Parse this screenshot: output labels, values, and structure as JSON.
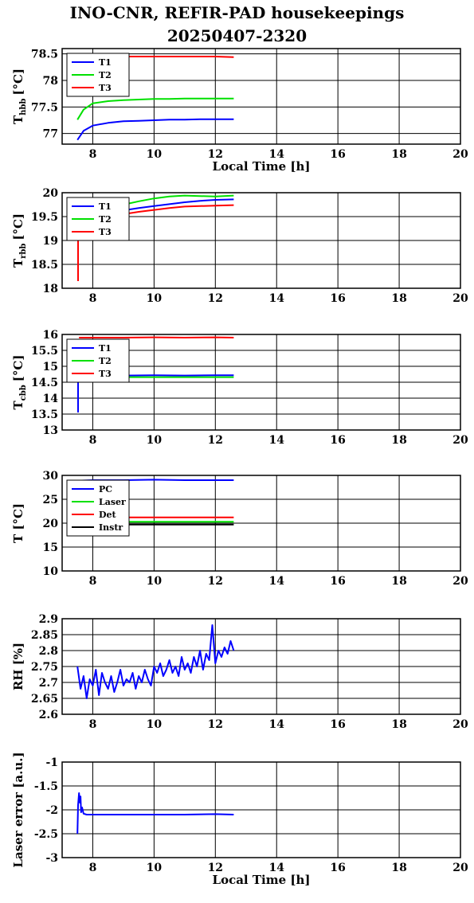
{
  "title": "INO-CNR, REFIR-PAD housekeepings",
  "subtitle": "20250407-2320",
  "colors": {
    "blue": "#0000ff",
    "green": "#00e000",
    "red": "#ff0000",
    "black": "#000000"
  },
  "chart_data": [
    {
      "type": "line",
      "ylabel": "T",
      "ylabel_sub": "hbb",
      "ylabel_unit": "[°C]",
      "xlabel": "Local Time [h]",
      "xlim": [
        7,
        20
      ],
      "ylim": [
        76.8,
        78.6
      ],
      "xticks": [
        "8",
        "10",
        "12",
        "14",
        "16",
        "18",
        "20"
      ],
      "yticks": [
        "77",
        "77.5",
        "78",
        "78.5"
      ],
      "ytick_values": [
        77,
        77.5,
        78,
        78.5
      ],
      "grid": true,
      "legend_position": "top-left",
      "series": [
        {
          "name": "T1",
          "color": "#0000ff",
          "x": [
            7.5,
            7.7,
            8.0,
            8.5,
            9.0,
            9.5,
            10.0,
            10.5,
            11.0,
            11.5,
            12.0,
            12.6
          ],
          "y": [
            76.88,
            77.05,
            77.15,
            77.2,
            77.23,
            77.24,
            77.25,
            77.26,
            77.26,
            77.27,
            77.27,
            77.27
          ]
        },
        {
          "name": "T2",
          "color": "#00e000",
          "x": [
            7.5,
            7.7,
            8.0,
            8.5,
            9.0,
            9.5,
            10.0,
            10.5,
            11.0,
            11.5,
            12.0,
            12.6
          ],
          "y": [
            77.26,
            77.45,
            77.57,
            77.61,
            77.63,
            77.64,
            77.65,
            77.65,
            77.66,
            77.66,
            77.66,
            77.66
          ]
        },
        {
          "name": "T3",
          "color": "#ff0000",
          "x": [
            7.5,
            8.0,
            9.0,
            10.0,
            11.0,
            12.0,
            12.6
          ],
          "y": [
            78.46,
            78.45,
            78.45,
            78.45,
            78.45,
            78.45,
            78.44
          ]
        }
      ]
    },
    {
      "type": "line",
      "ylabel": "T",
      "ylabel_sub": "rbb",
      "ylabel_unit": "[°C]",
      "xlim": [
        7,
        20
      ],
      "ylim": [
        18,
        20
      ],
      "xticks": [
        "8",
        "10",
        "12",
        "14",
        "16",
        "18",
        "20"
      ],
      "yticks": [
        "18",
        "18.5",
        "19",
        "19.5",
        "20"
      ],
      "ytick_values": [
        18,
        18.5,
        19,
        19.5,
        20
      ],
      "grid": true,
      "legend_position": "top-left",
      "series": [
        {
          "name": "T1",
          "color": "#0000ff",
          "x": [
            7.55,
            8.0,
            8.5,
            9.0,
            9.5,
            10.0,
            10.5,
            11.0,
            11.5,
            12.0,
            12.6
          ],
          "y": [
            19.45,
            19.52,
            19.58,
            19.63,
            19.68,
            19.72,
            19.76,
            19.8,
            19.83,
            19.85,
            19.86
          ]
        },
        {
          "name": "T2",
          "color": "#00e000",
          "x": [
            7.55,
            8.0,
            8.5,
            9.0,
            9.5,
            10.0,
            10.5,
            11.0,
            11.5,
            12.0,
            12.6
          ],
          "y": [
            19.5,
            19.58,
            19.68,
            19.75,
            19.82,
            19.88,
            19.92,
            19.94,
            19.93,
            19.92,
            19.94
          ]
        },
        {
          "name": "T3",
          "color": "#ff0000",
          "x": [
            7.52,
            7.52,
            7.55,
            8.0,
            8.5,
            9.0,
            9.5,
            10.0,
            10.5,
            11.0,
            11.5,
            12.0,
            12.6
          ],
          "y": [
            18.15,
            19.05,
            19.38,
            19.45,
            19.5,
            19.55,
            19.6,
            19.64,
            19.68,
            19.71,
            19.72,
            19.73,
            19.74
          ]
        }
      ]
    },
    {
      "type": "line",
      "ylabel": "T",
      "ylabel_sub": "cbb",
      "ylabel_unit": "[°C]",
      "xlim": [
        7,
        20
      ],
      "ylim": [
        13,
        16
      ],
      "xticks": [
        "8",
        "10",
        "12",
        "14",
        "16",
        "18",
        "20"
      ],
      "yticks": [
        "13",
        "13.5",
        "14",
        "14.5",
        "15",
        "15.5",
        "16"
      ],
      "ytick_values": [
        13,
        13.5,
        14,
        14.5,
        15,
        15.5,
        16
      ],
      "grid": true,
      "legend_position": "top-left",
      "series": [
        {
          "name": "T1",
          "color": "#0000ff",
          "x": [
            7.52,
            7.52,
            7.55,
            8.0,
            9.0,
            10.0,
            11.0,
            12.0,
            12.6
          ],
          "y": [
            13.55,
            14.6,
            14.7,
            14.72,
            14.71,
            14.72,
            14.71,
            14.72,
            14.72
          ]
        },
        {
          "name": "T2",
          "color": "#00e000",
          "x": [
            7.55,
            8.0,
            9.0,
            10.0,
            11.0,
            12.0,
            12.6
          ],
          "y": [
            14.65,
            14.66,
            14.66,
            14.66,
            14.66,
            14.66,
            14.66
          ]
        },
        {
          "name": "T3",
          "color": "#ff0000",
          "x": [
            7.55,
            8.0,
            9.0,
            10.0,
            11.0,
            12.0,
            12.6
          ],
          "y": [
            15.9,
            15.9,
            15.9,
            15.91,
            15.9,
            15.91,
            15.9
          ]
        }
      ]
    },
    {
      "type": "line",
      "ylabel": "T [°C]",
      "xlim": [
        7,
        20
      ],
      "ylim": [
        10,
        30
      ],
      "xticks": [
        "8",
        "10",
        "12",
        "14",
        "16",
        "18",
        "20"
      ],
      "yticks": [
        "10",
        "15",
        "20",
        "25",
        "30"
      ],
      "ytick_values": [
        10,
        15,
        20,
        25,
        30
      ],
      "grid": true,
      "legend_position": "top-left",
      "series": [
        {
          "name": "PC",
          "color": "#0000ff",
          "x": [
            7.55,
            8.0,
            9.0,
            10.0,
            11.0,
            12.0,
            12.6
          ],
          "y": [
            28.9,
            29.0,
            29.0,
            29.1,
            29.0,
            29.0,
            29.0
          ]
        },
        {
          "name": "Laser",
          "color": "#00e000",
          "x": [
            7.55,
            8.0,
            9.0,
            10.0,
            11.0,
            12.0,
            12.6
          ],
          "y": [
            20.3,
            20.3,
            20.3,
            20.3,
            20.3,
            20.3,
            20.3
          ]
        },
        {
          "name": "Det",
          "color": "#ff0000",
          "x": [
            7.55,
            8.0,
            9.0,
            10.0,
            11.0,
            12.0,
            12.6
          ],
          "y": [
            21.2,
            21.2,
            21.2,
            21.2,
            21.2,
            21.2,
            21.2
          ]
        },
        {
          "name": "Instr",
          "color": "#000000",
          "x": [
            7.55,
            8.0,
            9.0,
            10.0,
            11.0,
            12.0,
            12.6
          ],
          "y": [
            19.7,
            19.7,
            19.7,
            19.7,
            19.7,
            19.7,
            19.7
          ]
        }
      ]
    },
    {
      "type": "line",
      "ylabel": "RH [%]",
      "xlim": [
        7,
        20
      ],
      "ylim": [
        2.6,
        2.9
      ],
      "xticks": [
        "8",
        "10",
        "12",
        "14",
        "16",
        "18",
        "20"
      ],
      "yticks": [
        "2.6",
        "2.65",
        "2.7",
        "2.75",
        "2.8",
        "2.85",
        "2.9"
      ],
      "ytick_values": [
        2.6,
        2.65,
        2.7,
        2.75,
        2.8,
        2.85,
        2.9
      ],
      "grid": true,
      "series": [
        {
          "color": "#0000ff",
          "x": [
            7.5,
            7.6,
            7.7,
            7.8,
            7.9,
            8.0,
            8.1,
            8.2,
            8.3,
            8.4,
            8.5,
            8.6,
            8.7,
            8.8,
            8.9,
            9.0,
            9.1,
            9.2,
            9.3,
            9.4,
            9.5,
            9.6,
            9.7,
            9.8,
            9.9,
            10.0,
            10.1,
            10.2,
            10.3,
            10.4,
            10.5,
            10.6,
            10.7,
            10.8,
            10.9,
            11.0,
            11.1,
            11.2,
            11.3,
            11.4,
            11.5,
            11.6,
            11.7,
            11.8,
            11.9,
            12.0,
            12.1,
            12.2,
            12.3,
            12.4,
            12.5,
            12.6
          ],
          "y": [
            2.75,
            2.68,
            2.72,
            2.65,
            2.71,
            2.69,
            2.74,
            2.66,
            2.73,
            2.7,
            2.68,
            2.72,
            2.67,
            2.7,
            2.74,
            2.69,
            2.71,
            2.7,
            2.73,
            2.68,
            2.72,
            2.7,
            2.74,
            2.71,
            2.69,
            2.75,
            2.73,
            2.76,
            2.72,
            2.74,
            2.77,
            2.73,
            2.75,
            2.72,
            2.78,
            2.74,
            2.76,
            2.73,
            2.78,
            2.75,
            2.8,
            2.74,
            2.79,
            2.77,
            2.88,
            2.76,
            2.8,
            2.78,
            2.81,
            2.79,
            2.83,
            2.8
          ]
        }
      ]
    },
    {
      "type": "line",
      "ylabel": "Laser error [a.u.]",
      "xlabel": "Local Time [h]",
      "xlim": [
        7,
        20
      ],
      "ylim": [
        -3,
        -1
      ],
      "xticks": [
        "8",
        "10",
        "12",
        "14",
        "16",
        "18",
        "20"
      ],
      "yticks": [
        "-3",
        "-2.5",
        "-2",
        "-1.5",
        "-1"
      ],
      "ytick_values": [
        -3,
        -2.5,
        -2,
        -1.5,
        -1
      ],
      "grid": true,
      "series": [
        {
          "color": "#0000ff",
          "x": [
            7.5,
            7.52,
            7.55,
            7.58,
            7.6,
            7.62,
            7.65,
            7.7,
            7.8,
            8.0,
            9.0,
            10.0,
            11.0,
            12.0,
            12.6
          ],
          "y": [
            -2.5,
            -1.9,
            -1.65,
            -1.85,
            -1.72,
            -2.05,
            -1.95,
            -2.08,
            -2.1,
            -2.1,
            -2.1,
            -2.1,
            -2.1,
            -2.09,
            -2.1
          ]
        }
      ]
    }
  ]
}
